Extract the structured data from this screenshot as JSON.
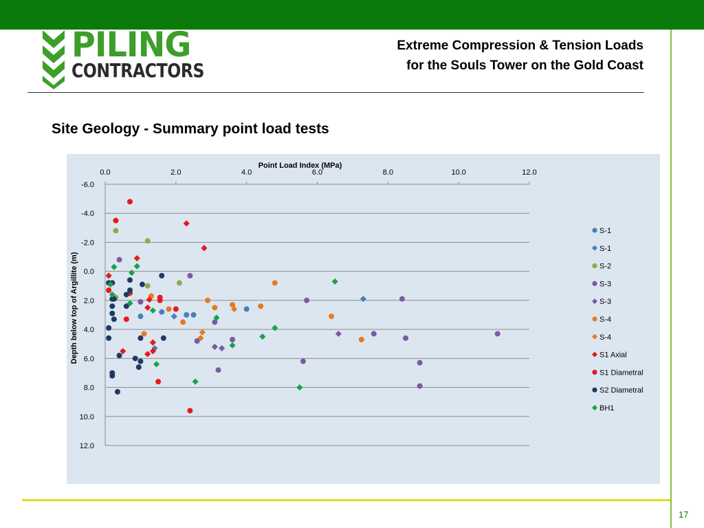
{
  "slide": {
    "logo_line1": "PILING",
    "logo_line2": "CONTRACTORS",
    "header_line1": "Extreme Compression & Tension Loads",
    "header_line2": "for the Souls Tower on the Gold Coast",
    "title": "Site Geology - Summary point load tests",
    "page_number": "17"
  },
  "colors": {
    "top_bar": "#0a7a0a",
    "accent_line": "#86c33a",
    "bottom_line": "#e0dc1c",
    "plot_background": "#dce6f0"
  },
  "chart_data": {
    "type": "scatter",
    "xlabel": "Point Load Index (MPa)",
    "ylabel": "Depth below top of Argillite (m)",
    "xlim": [
      0,
      12
    ],
    "ylim": [
      -6,
      12
    ],
    "y_inverted": true,
    "x_axis_position": "top",
    "x_ticks": [
      "0.0",
      "2.0",
      "4.0",
      "6.0",
      "8.0",
      "10.0",
      "12.0"
    ],
    "y_ticks": [
      "-6.0",
      "-4.0",
      "-2.0",
      "0.0",
      "2.0",
      "4.0",
      "6.0",
      "8.0",
      "10.0",
      "12.0"
    ],
    "grid": "horizontal",
    "legend_position": "right",
    "series": [
      {
        "name": "S-1",
        "marker": "circle",
        "color": "#4a7ebb",
        "points": [
          [
            1.0,
            3.1
          ],
          [
            1.6,
            2.8
          ],
          [
            2.3,
            3.0
          ],
          [
            2.5,
            3.0
          ],
          [
            4.0,
            2.6
          ]
        ]
      },
      {
        "name": "S-1",
        "marker": "diamond",
        "color": "#4a7ebb",
        "points": [
          [
            1.4,
            5.3
          ],
          [
            1.95,
            3.1
          ],
          [
            7.3,
            1.9
          ]
        ]
      },
      {
        "name": "S-2",
        "marker": "circle",
        "color": "#8faa4f",
        "points": [
          [
            0.3,
            -2.8
          ],
          [
            1.2,
            -2.1
          ],
          [
            0.2,
            0.8
          ],
          [
            0.3,
            1.8
          ],
          [
            1.2,
            1.0
          ],
          [
            2.1,
            0.8
          ]
        ]
      },
      {
        "name": "S-3",
        "marker": "circle",
        "color": "#7a5aa0",
        "points": [
          [
            0.4,
            -0.8
          ],
          [
            2.4,
            0.3
          ],
          [
            1.0,
            2.1
          ],
          [
            2.6,
            4.8
          ],
          [
            3.1,
            3.5
          ],
          [
            3.6,
            4.7
          ],
          [
            3.2,
            6.8
          ],
          [
            5.7,
            2.0
          ],
          [
            5.6,
            6.2
          ],
          [
            7.6,
            4.3
          ],
          [
            8.4,
            1.9
          ],
          [
            8.5,
            4.6
          ],
          [
            8.9,
            6.3
          ],
          [
            8.9,
            7.9
          ],
          [
            11.1,
            4.3
          ]
        ]
      },
      {
        "name": "S-3",
        "marker": "diamond",
        "color": "#7a5aa0",
        "points": [
          [
            3.1,
            5.2
          ],
          [
            3.3,
            5.3
          ],
          [
            6.6,
            4.3
          ]
        ]
      },
      {
        "name": "S-4",
        "marker": "circle",
        "color": "#e67a22",
        "points": [
          [
            1.3,
            1.7
          ],
          [
            1.8,
            2.6
          ],
          [
            2.2,
            3.5
          ],
          [
            2.9,
            2.0
          ],
          [
            3.1,
            2.5
          ],
          [
            3.6,
            2.3
          ],
          [
            4.4,
            2.4
          ],
          [
            4.8,
            0.8
          ],
          [
            6.4,
            3.1
          ],
          [
            7.25,
            4.7
          ],
          [
            1.1,
            4.3
          ]
        ]
      },
      {
        "name": "S-4",
        "marker": "diamond",
        "color": "#e67a22",
        "points": [
          [
            2.7,
            4.6
          ],
          [
            2.75,
            4.2
          ],
          [
            3.65,
            2.6
          ]
        ]
      },
      {
        "name": "S1 Axial",
        "marker": "diamond",
        "color": "#e41b1b",
        "points": [
          [
            0.1,
            0.3
          ],
          [
            0.5,
            5.5
          ],
          [
            0.9,
            -0.9
          ],
          [
            1.2,
            2.5
          ],
          [
            1.25,
            1.95
          ],
          [
            1.35,
            4.9
          ],
          [
            1.35,
            5.5
          ],
          [
            1.2,
            5.7
          ],
          [
            2.3,
            -3.3
          ],
          [
            2.8,
            -1.6
          ]
        ]
      },
      {
        "name": "S1 Diametral",
        "marker": "circle",
        "color": "#e41b1b",
        "points": [
          [
            0.1,
            1.3
          ],
          [
            0.3,
            -3.5
          ],
          [
            0.7,
            -4.8
          ],
          [
            0.6,
            3.3
          ],
          [
            0.7,
            1.5
          ],
          [
            1.5,
            7.6
          ],
          [
            1.55,
            1.8
          ],
          [
            1.55,
            2.0
          ],
          [
            2.0,
            2.6
          ],
          [
            2.4,
            9.6
          ]
        ]
      },
      {
        "name": "S2 Diametral",
        "marker": "circle",
        "color": "#1d3a63",
        "points": [
          [
            0.1,
            0.8
          ],
          [
            0.2,
            0.8
          ],
          [
            0.2,
            1.9
          ],
          [
            0.25,
            1.9
          ],
          [
            0.2,
            2.4
          ],
          [
            0.2,
            2.9
          ],
          [
            0.25,
            3.3
          ],
          [
            0.1,
            3.9
          ],
          [
            0.1,
            4.6
          ],
          [
            0.7,
            0.6
          ],
          [
            0.7,
            1.3
          ],
          [
            0.6,
            1.6
          ],
          [
            0.6,
            2.4
          ],
          [
            1.05,
            0.9
          ],
          [
            1.6,
            0.3
          ],
          [
            1.0,
            4.6
          ],
          [
            1.65,
            4.6
          ],
          [
            0.4,
            5.8
          ],
          [
            0.85,
            6.0
          ],
          [
            1.0,
            6.2
          ],
          [
            0.95,
            6.6
          ],
          [
            0.2,
            7.0
          ],
          [
            0.2,
            7.2
          ],
          [
            0.35,
            8.3
          ]
        ]
      },
      {
        "name": "BH1",
        "marker": "diamond",
        "color": "#17a34a",
        "points": [
          [
            0.25,
            -0.3
          ],
          [
            0.9,
            -0.35
          ],
          [
            0.75,
            0.1
          ],
          [
            0.15,
            0.9
          ],
          [
            0.2,
            1.6
          ],
          [
            0.7,
            2.2
          ],
          [
            1.35,
            2.7
          ],
          [
            1.45,
            6.4
          ],
          [
            2.55,
            7.6
          ],
          [
            3.15,
            3.2
          ],
          [
            3.6,
            5.1
          ],
          [
            4.45,
            4.5
          ],
          [
            4.8,
            3.9
          ],
          [
            6.5,
            0.7
          ],
          [
            5.5,
            8.0
          ]
        ]
      }
    ]
  }
}
